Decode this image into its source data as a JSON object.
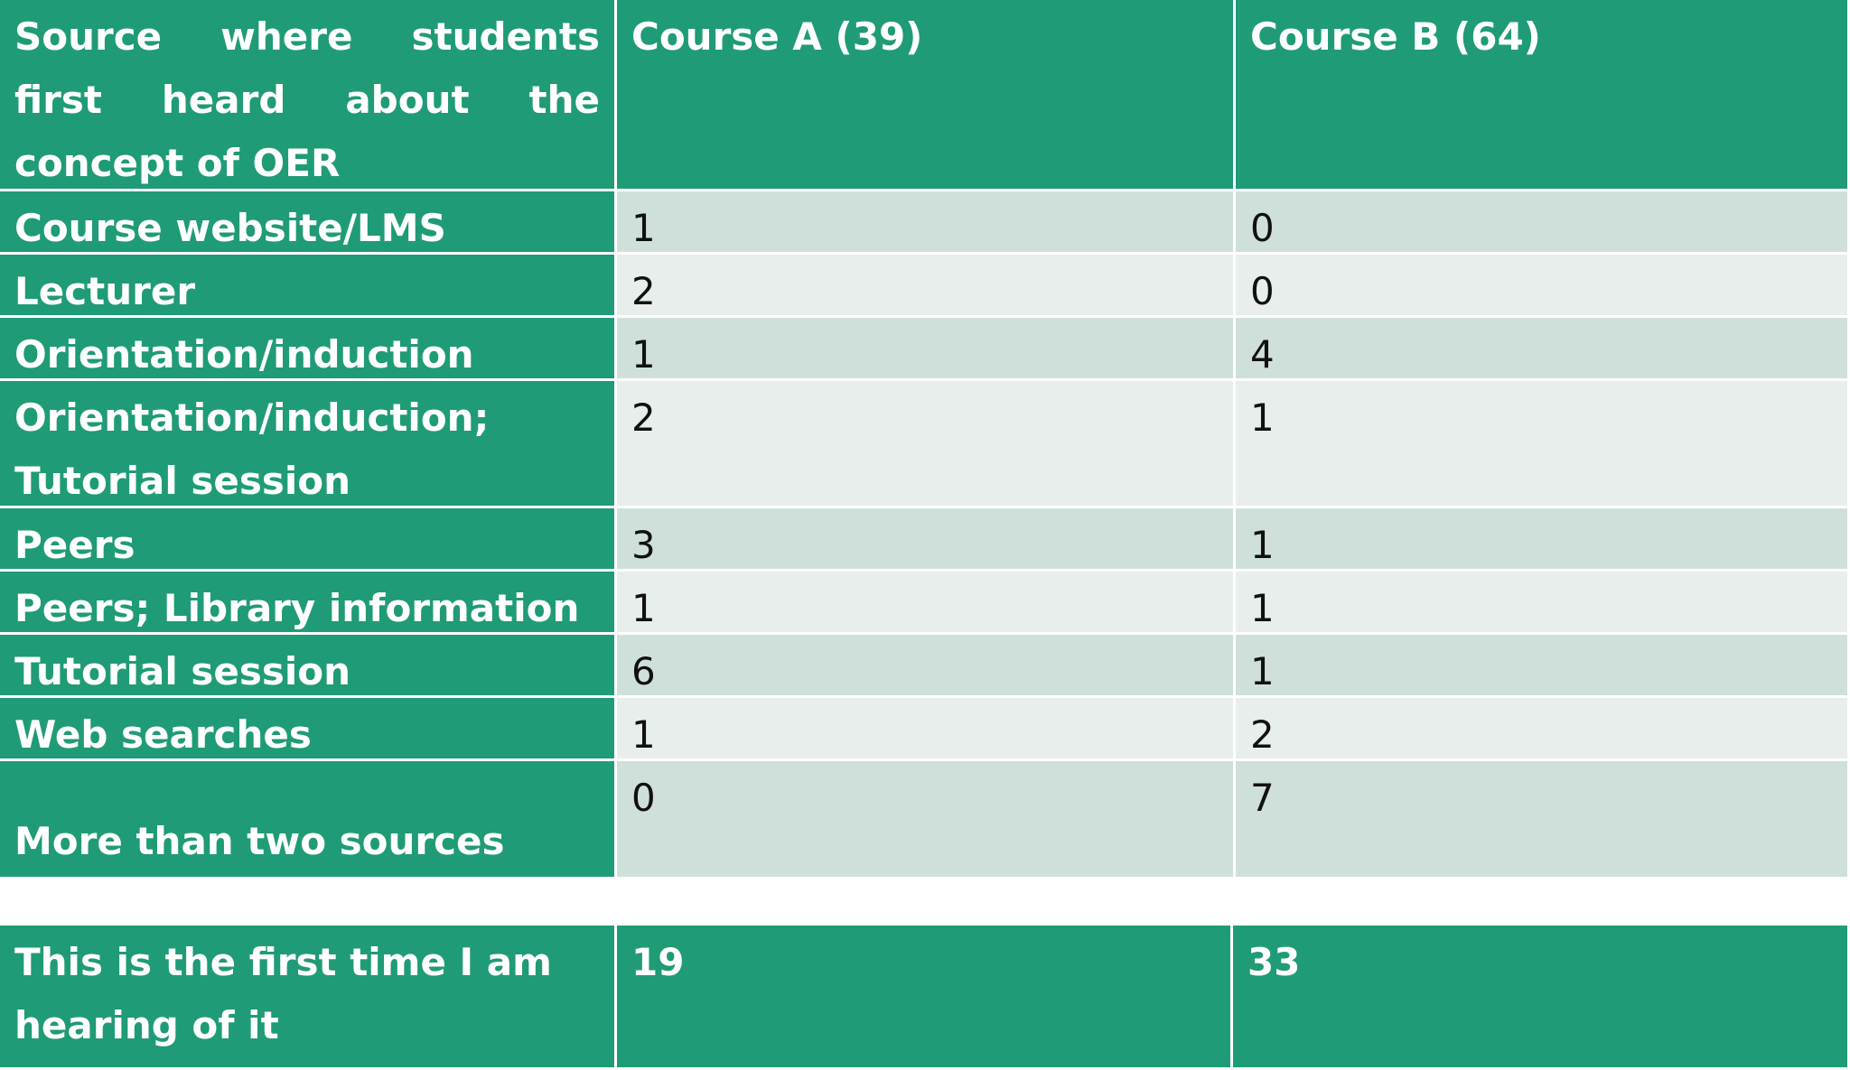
{
  "table": {
    "header": [
      "Source where students first heard about the concept of OER",
      "Course A (39)",
      "Course B (64)"
    ],
    "rows": [
      [
        "Course website/LMS",
        1,
        0
      ],
      [
        "Lecturer",
        2,
        0
      ],
      [
        "Orientation/induction",
        1,
        4
      ],
      [
        "Orientation/induction; Tutorial session",
        2,
        1
      ],
      [
        "Peers",
        3,
        1
      ],
      [
        "Peers; Library information",
        1,
        1
      ],
      [
        "Tutorial session",
        6,
        1
      ],
      [
        "Web searches",
        1,
        2
      ],
      [
        "More than two sources",
        0,
        7
      ]
    ]
  },
  "summary": {
    "cells": [
      "This is the first time I am hearing of it",
      19,
      33
    ]
  }
}
